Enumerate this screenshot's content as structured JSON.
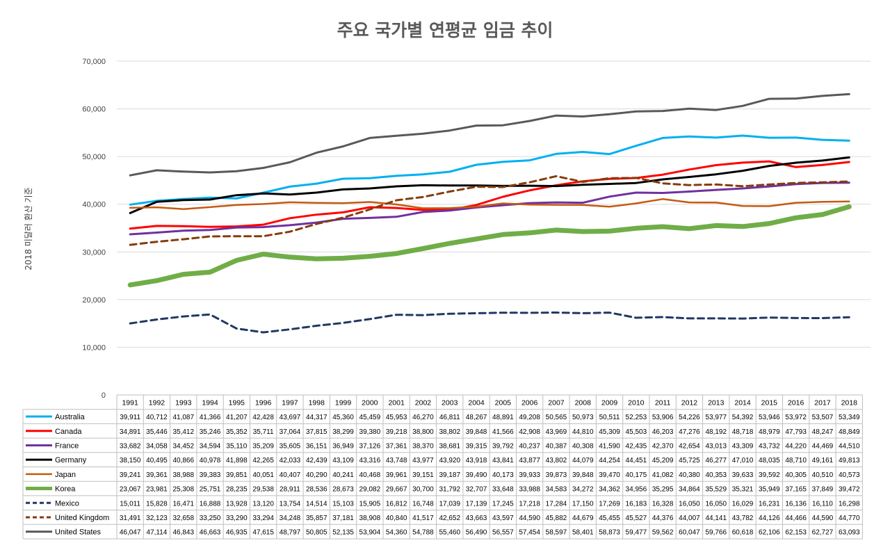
{
  "chart_data": {
    "type": "line",
    "title": "주요 국가별 연평균 임금 추이",
    "ylabel": "2018 미달러 환산 기준",
    "xlabel": "",
    "ylim": [
      0,
      70000
    ],
    "yticks": [
      "0",
      "10,000",
      "20,000",
      "30,000",
      "40,000",
      "50,000",
      "60,000",
      "70,000"
    ],
    "grid": true,
    "legend": "data-table",
    "x": [
      "1991",
      "1992",
      "1993",
      "1994",
      "1995",
      "1996",
      "1997",
      "1998",
      "1999",
      "2000",
      "2001",
      "2002",
      "2003",
      "2004",
      "2005",
      "2006",
      "2007",
      "2008",
      "2009",
      "2010",
      "2011",
      "2012",
      "2013",
      "2014",
      "2015",
      "2016",
      "2017",
      "2018"
    ],
    "series": [
      {
        "name": "Australia",
        "color": "#00b0f0",
        "style": "solid",
        "width": 3,
        "values": [
          39911,
          40712,
          41087,
          41366,
          41207,
          42428,
          43697,
          44317,
          45360,
          45459,
          45953,
          46270,
          46811,
          48267,
          48891,
          49208,
          50565,
          50973,
          50511,
          52253,
          53906,
          54226,
          53977,
          54392,
          53946,
          53972,
          53507,
          53349
        ]
      },
      {
        "name": "Canada",
        "color": "#ff0000",
        "style": "solid",
        "width": 3,
        "values": [
          34891,
          35446,
          35412,
          35246,
          35352,
          35711,
          37064,
          37815,
          38299,
          39380,
          39218,
          38800,
          38802,
          39848,
          41566,
          42908,
          43969,
          44810,
          45309,
          45503,
          46203,
          47276,
          48192,
          48718,
          48979,
          47793,
          48247,
          48849
        ]
      },
      {
        "name": "France",
        "color": "#7030a0",
        "style": "solid",
        "width": 3,
        "values": [
          33682,
          34058,
          34452,
          34594,
          35110,
          35209,
          35605,
          36151,
          36949,
          37126,
          37361,
          38370,
          38681,
          39315,
          39792,
          40237,
          40387,
          40308,
          41590,
          42435,
          42370,
          42654,
          43013,
          43309,
          43732,
          44220,
          44469,
          44510
        ]
      },
      {
        "name": "Germany",
        "color": "#000000",
        "style": "solid",
        "width": 3,
        "values": [
          38150,
          40495,
          40866,
          40978,
          41898,
          42265,
          42033,
          42439,
          43109,
          43316,
          43748,
          43977,
          43920,
          43918,
          43841,
          43877,
          43802,
          44079,
          44254,
          44451,
          45209,
          45725,
          46277,
          47010,
          48035,
          48710,
          49161,
          49813
        ]
      },
      {
        "name": "Japan",
        "color": "#c55a11",
        "style": "solid",
        "width": 2.5,
        "values": [
          39241,
          39361,
          38988,
          39383,
          39851,
          40051,
          40407,
          40290,
          40241,
          40468,
          39961,
          39151,
          39187,
          39490,
          40173,
          39933,
          39873,
          39848,
          39470,
          40175,
          41082,
          40380,
          40353,
          39633,
          39592,
          40305,
          40510,
          40573
        ]
      },
      {
        "name": "Korea",
        "color": "#70ad47",
        "style": "solid",
        "width": 7,
        "values": [
          23067,
          23981,
          25308,
          25751,
          28235,
          29538,
          28911,
          28536,
          28673,
          29082,
          29667,
          30700,
          31792,
          32707,
          33648,
          33988,
          34583,
          34272,
          34362,
          34956,
          35295,
          34864,
          35529,
          35321,
          35949,
          37165,
          37849,
          39472
        ]
      },
      {
        "name": "Mexico",
        "color": "#203864",
        "style": "dashed",
        "width": 3,
        "values": [
          15011,
          15828,
          16471,
          16888,
          13928,
          13120,
          13754,
          14514,
          15103,
          15905,
          16812,
          16748,
          17039,
          17139,
          17245,
          17218,
          17284,
          17150,
          17269,
          16183,
          16328,
          16050,
          16050,
          16029,
          16231,
          16136,
          16110,
          16298
        ]
      },
      {
        "name": "United Kingdom",
        "color": "#843c0c",
        "style": "dashed",
        "width": 3,
        "values": [
          31491,
          32123,
          32658,
          33250,
          33290,
          33294,
          34248,
          35857,
          37181,
          38908,
          40840,
          41517,
          42652,
          43663,
          43597,
          44590,
          45882,
          44679,
          45455,
          45527,
          44376,
          44007,
          44141,
          43782,
          44126,
          44466,
          44590,
          44770
        ]
      },
      {
        "name": "United States",
        "color": "#595959",
        "style": "solid",
        "width": 3,
        "values": [
          46047,
          47114,
          46843,
          46663,
          46935,
          47615,
          48797,
          50805,
          52135,
          53904,
          54360,
          54788,
          55460,
          56490,
          56557,
          57454,
          58597,
          58401,
          58873,
          59477,
          59562,
          60047,
          59766,
          60618,
          62106,
          62153,
          62727,
          63093
        ]
      }
    ]
  }
}
